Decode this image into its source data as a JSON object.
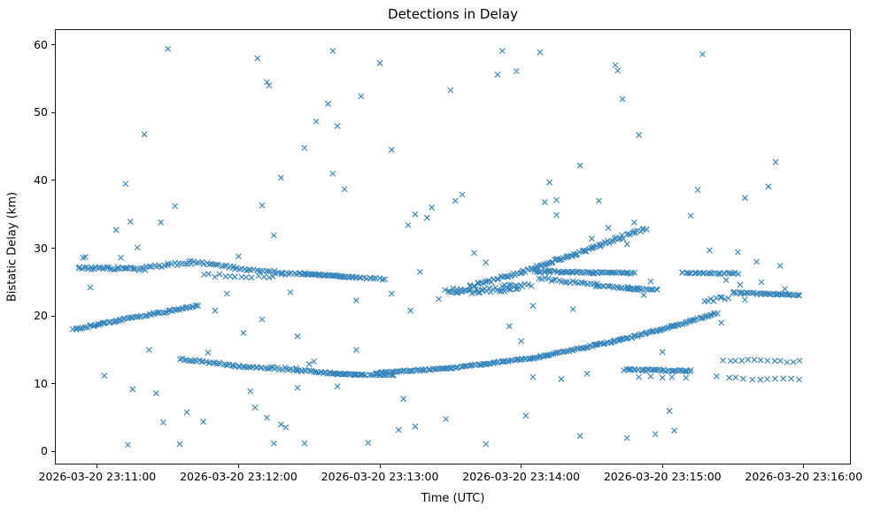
{
  "chart_data": {
    "type": "scatter",
    "title": "Detections in Delay",
    "xlabel": "Time (UTC)",
    "ylabel": "Bistatic Delay (km)",
    "marker": "x",
    "marker_color": "#1f77b4",
    "legend": "none",
    "grid": false,
    "x_axis": {
      "kind": "time",
      "tick_seconds": [
        0,
        60,
        120,
        180,
        240,
        300
      ],
      "tick_labels": [
        "2026-03-20 23:11:00",
        "2026-03-20 23:12:00",
        "2026-03-20 23:13:00",
        "2026-03-20 23:14:00",
        "2026-03-20 23:15:00",
        "2026-03-20 23:16:00"
      ],
      "xlim_seconds": [
        -18,
        320
      ]
    },
    "y_axis": {
      "tick_values": [
        0,
        10,
        20,
        30,
        40,
        50,
        60
      ],
      "ylim": [
        -1.9,
        62.3
      ]
    },
    "tracks_note": "Dense detection streaks. Each segment: [t_start_s, delay_start_km, t_end_s, delay_end_km, n_points, delay_jitter_km]; t is seconds after 2026-03-20 23:11:00.",
    "track_segments": [
      [
        -10,
        18.0,
        8,
        19.3,
        26,
        0.12
      ],
      [
        8,
        19.3,
        26,
        20.4,
        24,
        0.12
      ],
      [
        26,
        20.4,
        43,
        21.6,
        24,
        0.12
      ],
      [
        -8,
        27.1,
        20,
        26.95,
        34,
        0.22
      ],
      [
        20,
        27.1,
        40,
        27.9,
        20,
        0.22
      ],
      [
        40,
        28.0,
        58,
        27.2,
        18,
        0.2
      ],
      [
        58,
        27.1,
        78,
        26.35,
        20,
        0.2
      ],
      [
        45,
        26.0,
        75,
        25.8,
        14,
        0.25
      ],
      [
        78,
        26.3,
        88,
        26.2,
        12,
        0.18
      ],
      [
        88,
        26.2,
        110,
        25.7,
        44,
        0.1
      ],
      [
        110,
        25.7,
        122,
        25.45,
        12,
        0.12
      ],
      [
        35,
        13.7,
        58,
        12.7,
        26,
        0.15
      ],
      [
        58,
        12.7,
        85,
        12.1,
        30,
        0.2
      ],
      [
        85,
        12.0,
        100,
        11.6,
        20,
        0.15
      ],
      [
        100,
        11.5,
        114,
        11.3,
        26,
        0.08
      ],
      [
        116,
        11.35,
        126,
        11.3,
        12,
        0.07
      ],
      [
        118,
        11.6,
        150,
        12.3,
        44,
        0.1
      ],
      [
        150,
        12.3,
        185,
        13.8,
        50,
        0.1
      ],
      [
        185,
        13.8,
        220,
        16.3,
        50,
        0.1
      ],
      [
        220,
        16.3,
        245,
        18.5,
        36,
        0.1
      ],
      [
        245,
        18.5,
        263,
        20.4,
        26,
        0.1
      ],
      [
        148,
        23.8,
        162,
        23.6,
        22,
        0.35
      ],
      [
        162,
        23.7,
        180,
        24.1,
        22,
        0.35
      ],
      [
        172,
        24.5,
        184,
        24.6,
        10,
        0.2
      ],
      [
        158,
        24.4,
        180,
        26.4,
        28,
        0.25
      ],
      [
        180,
        26.4,
        200,
        28.8,
        32,
        0.2
      ],
      [
        200,
        28.8,
        222,
        31.5,
        32,
        0.25
      ],
      [
        222,
        31.5,
        233,
        32.9,
        14,
        0.3
      ],
      [
        186,
        26.6,
        212,
        26.4,
        38,
        0.15
      ],
      [
        212,
        26.4,
        228,
        26.3,
        22,
        0.12
      ],
      [
        188,
        25.5,
        212,
        24.6,
        22,
        0.2
      ],
      [
        212,
        24.5,
        230,
        24.0,
        22,
        0.15
      ],
      [
        225,
        24.0,
        238,
        23.9,
        16,
        0.1
      ],
      [
        248,
        26.35,
        272,
        26.25,
        28,
        0.12
      ],
      [
        224,
        12.1,
        252,
        11.9,
        38,
        0.12
      ],
      [
        270,
        23.45,
        284,
        23.25,
        20,
        0.12
      ],
      [
        284,
        23.25,
        298,
        23.1,
        22,
        0.1
      ],
      [
        266,
        13.5,
        298,
        13.3,
        13,
        0.15
      ],
      [
        268,
        10.8,
        298,
        10.6,
        10,
        0.18
      ],
      [
        258,
        22.2,
        268,
        22.8,
        9,
        0.3
      ]
    ],
    "scatter_points_note": "Isolated detections: [t_seconds_after_23:11:00, bistatic_delay_km].",
    "scatter_points": [
      [
        -6,
        28.6
      ],
      [
        -5,
        28.7
      ],
      [
        -3,
        24.2
      ],
      [
        3,
        11.2
      ],
      [
        8,
        32.7
      ],
      [
        10,
        28.6
      ],
      [
        12,
        39.5
      ],
      [
        13,
        1.0
      ],
      [
        14,
        33.9
      ],
      [
        15,
        9.2
      ],
      [
        17,
        30.1
      ],
      [
        20,
        46.8
      ],
      [
        22,
        15.0
      ],
      [
        25,
        8.6
      ],
      [
        27,
        33.8
      ],
      [
        28,
        4.3
      ],
      [
        30,
        59.4
      ],
      [
        33,
        36.2
      ],
      [
        35,
        1.1
      ],
      [
        38,
        5.8
      ],
      [
        45,
        4.4
      ],
      [
        47,
        14.6
      ],
      [
        50,
        20.8
      ],
      [
        55,
        23.3
      ],
      [
        60,
        28.8
      ],
      [
        62,
        17.5
      ],
      [
        65,
        8.9
      ],
      [
        67,
        6.5
      ],
      [
        68,
        58.0
      ],
      [
        70,
        19.5
      ],
      [
        70,
        36.3
      ],
      [
        72,
        5.0
      ],
      [
        72,
        54.5
      ],
      [
        73,
        54.0
      ],
      [
        75,
        1.2
      ],
      [
        75,
        31.9
      ],
      [
        78,
        4.0
      ],
      [
        78,
        40.4
      ],
      [
        80,
        3.6
      ],
      [
        82,
        23.5
      ],
      [
        85,
        9.4
      ],
      [
        85,
        17.0
      ],
      [
        88,
        1.2
      ],
      [
        88,
        44.8
      ],
      [
        90,
        12.9
      ],
      [
        92,
        13.3
      ],
      [
        93,
        48.7
      ],
      [
        98,
        51.3
      ],
      [
        100,
        41.0
      ],
      [
        100,
        59.1
      ],
      [
        102,
        9.6
      ],
      [
        102,
        48.0
      ],
      [
        105,
        38.7
      ],
      [
        110,
        15.0
      ],
      [
        110,
        22.3
      ],
      [
        112,
        52.4
      ],
      [
        115,
        1.3
      ],
      [
        120,
        57.3
      ],
      [
        125,
        23.3
      ],
      [
        125,
        44.5
      ],
      [
        128,
        3.2
      ],
      [
        130,
        7.8
      ],
      [
        132,
        33.4
      ],
      [
        133,
        20.8
      ],
      [
        135,
        3.7
      ],
      [
        135,
        35.0
      ],
      [
        137,
        26.5
      ],
      [
        140,
        34.5
      ],
      [
        142,
        36.0
      ],
      [
        145,
        22.5
      ],
      [
        148,
        4.8
      ],
      [
        150,
        53.3
      ],
      [
        152,
        37.0
      ],
      [
        155,
        37.9
      ],
      [
        160,
        29.3
      ],
      [
        165,
        1.1
      ],
      [
        165,
        27.9
      ],
      [
        170,
        55.6
      ],
      [
        172,
        59.1
      ],
      [
        175,
        18.5
      ],
      [
        178,
        56.1
      ],
      [
        180,
        16.3
      ],
      [
        182,
        5.3
      ],
      [
        185,
        11.0
      ],
      [
        185,
        21.5
      ],
      [
        188,
        58.9
      ],
      [
        190,
        36.8
      ],
      [
        192,
        39.7
      ],
      [
        195,
        34.9
      ],
      [
        195,
        37.1
      ],
      [
        197,
        10.7
      ],
      [
        202,
        21.0
      ],
      [
        205,
        2.3
      ],
      [
        205,
        42.2
      ],
      [
        208,
        11.5
      ],
      [
        210,
        31.4
      ],
      [
        213,
        37.0
      ],
      [
        217,
        33.0
      ],
      [
        220,
        57.0
      ],
      [
        221,
        56.2
      ],
      [
        223,
        52.0
      ],
      [
        225,
        2.0
      ],
      [
        225,
        30.6
      ],
      [
        228,
        33.8
      ],
      [
        230,
        11.0
      ],
      [
        230,
        46.7
      ],
      [
        232,
        23.1
      ],
      [
        235,
        11.1
      ],
      [
        235,
        25.1
      ],
      [
        237,
        2.6
      ],
      [
        240,
        10.9
      ],
      [
        240,
        14.7
      ],
      [
        243,
        6.0
      ],
      [
        244,
        11.0
      ],
      [
        245,
        3.1
      ],
      [
        250,
        10.9
      ],
      [
        252,
        34.8
      ],
      [
        255,
        38.6
      ],
      [
        257,
        58.6
      ],
      [
        260,
        29.7
      ],
      [
        263,
        11.1
      ],
      [
        265,
        19.0
      ],
      [
        267,
        25.3
      ],
      [
        272,
        29.4
      ],
      [
        273,
        24.6
      ],
      [
        275,
        22.4
      ],
      [
        275,
        37.4
      ],
      [
        280,
        28.0
      ],
      [
        282,
        25.0
      ],
      [
        285,
        39.1
      ],
      [
        288,
        42.7
      ],
      [
        290,
        27.4
      ],
      [
        292,
        24.0
      ]
    ]
  }
}
